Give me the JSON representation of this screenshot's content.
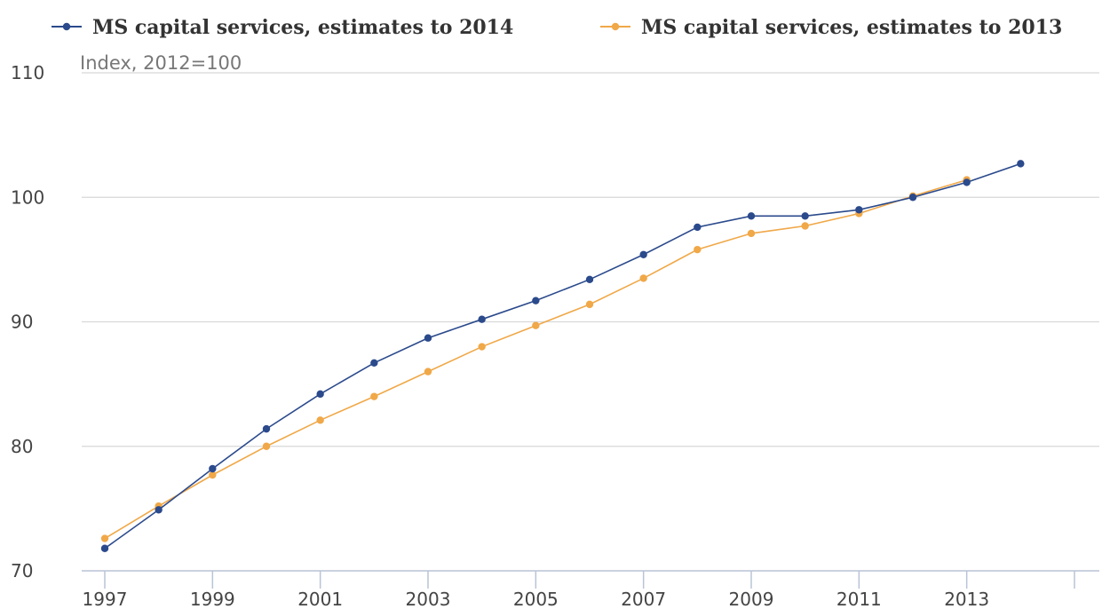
{
  "chart_data": {
    "type": "line",
    "subtitle": "Index, 2012=100",
    "x": [
      1997,
      1998,
      1999,
      2000,
      2001,
      2002,
      2003,
      2004,
      2005,
      2006,
      2007,
      2008,
      2009,
      2010,
      2011,
      2012,
      2013,
      2014
    ],
    "xticks": [
      "1997",
      "1999",
      "2001",
      "2003",
      "2005",
      "2007",
      "2009",
      "2011",
      "2013"
    ],
    "yticks": [
      "70",
      "80",
      "90",
      "100",
      "110"
    ],
    "ylim": [
      70,
      110
    ],
    "xlim": [
      1997,
      2015
    ],
    "grid": true,
    "legend_position": "top",
    "series": [
      {
        "name": "MS capital services, estimates to 2014",
        "color": "#2b4a8c",
        "values": [
          71.8,
          74.9,
          78.2,
          81.4,
          84.2,
          86.7,
          88.7,
          90.2,
          91.7,
          93.4,
          95.4,
          97.6,
          98.5,
          98.5,
          99.0,
          100.0,
          101.2,
          102.7
        ]
      },
      {
        "name": "MS capital services, estimates to 2013",
        "color": "#f0a848",
        "values": [
          72.6,
          75.2,
          77.7,
          80.0,
          82.1,
          84.0,
          86.0,
          88.0,
          89.7,
          91.4,
          93.5,
          95.8,
          97.1,
          97.7,
          98.7,
          100.1,
          101.4,
          null
        ]
      }
    ]
  }
}
